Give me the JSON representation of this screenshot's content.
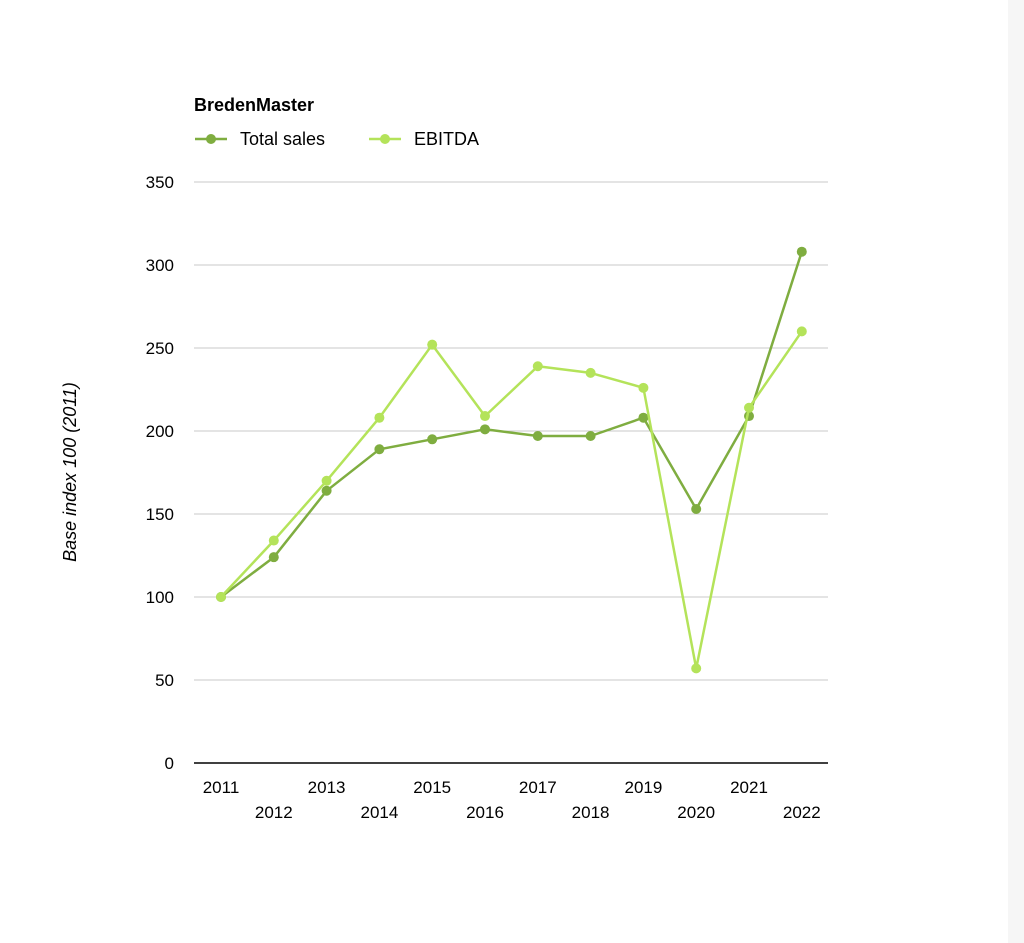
{
  "chart_data": {
    "type": "line",
    "title": "BredenMaster",
    "xlabel": "",
    "ylabel": "Base index 100 (2011)",
    "categories": [
      "2011",
      "2012",
      "2013",
      "2014",
      "2015",
      "2016",
      "2017",
      "2018",
      "2019",
      "2020",
      "2021",
      "2022"
    ],
    "ylim": [
      0,
      350
    ],
    "yticks": [
      "0",
      "50",
      "100",
      "150",
      "200",
      "250",
      "300",
      "350"
    ],
    "grid": true,
    "legend_position": "top-left",
    "series": [
      {
        "name": "Total sales",
        "color": "#7fad40",
        "values": [
          100,
          124,
          164,
          189,
          195,
          201,
          197,
          197,
          208,
          153,
          209,
          308
        ]
      },
      {
        "name": "EBITDA",
        "color": "#b4e35a",
        "values": [
          100,
          134,
          170,
          208,
          252,
          209,
          239,
          235,
          226,
          57,
          214,
          260
        ]
      }
    ]
  }
}
